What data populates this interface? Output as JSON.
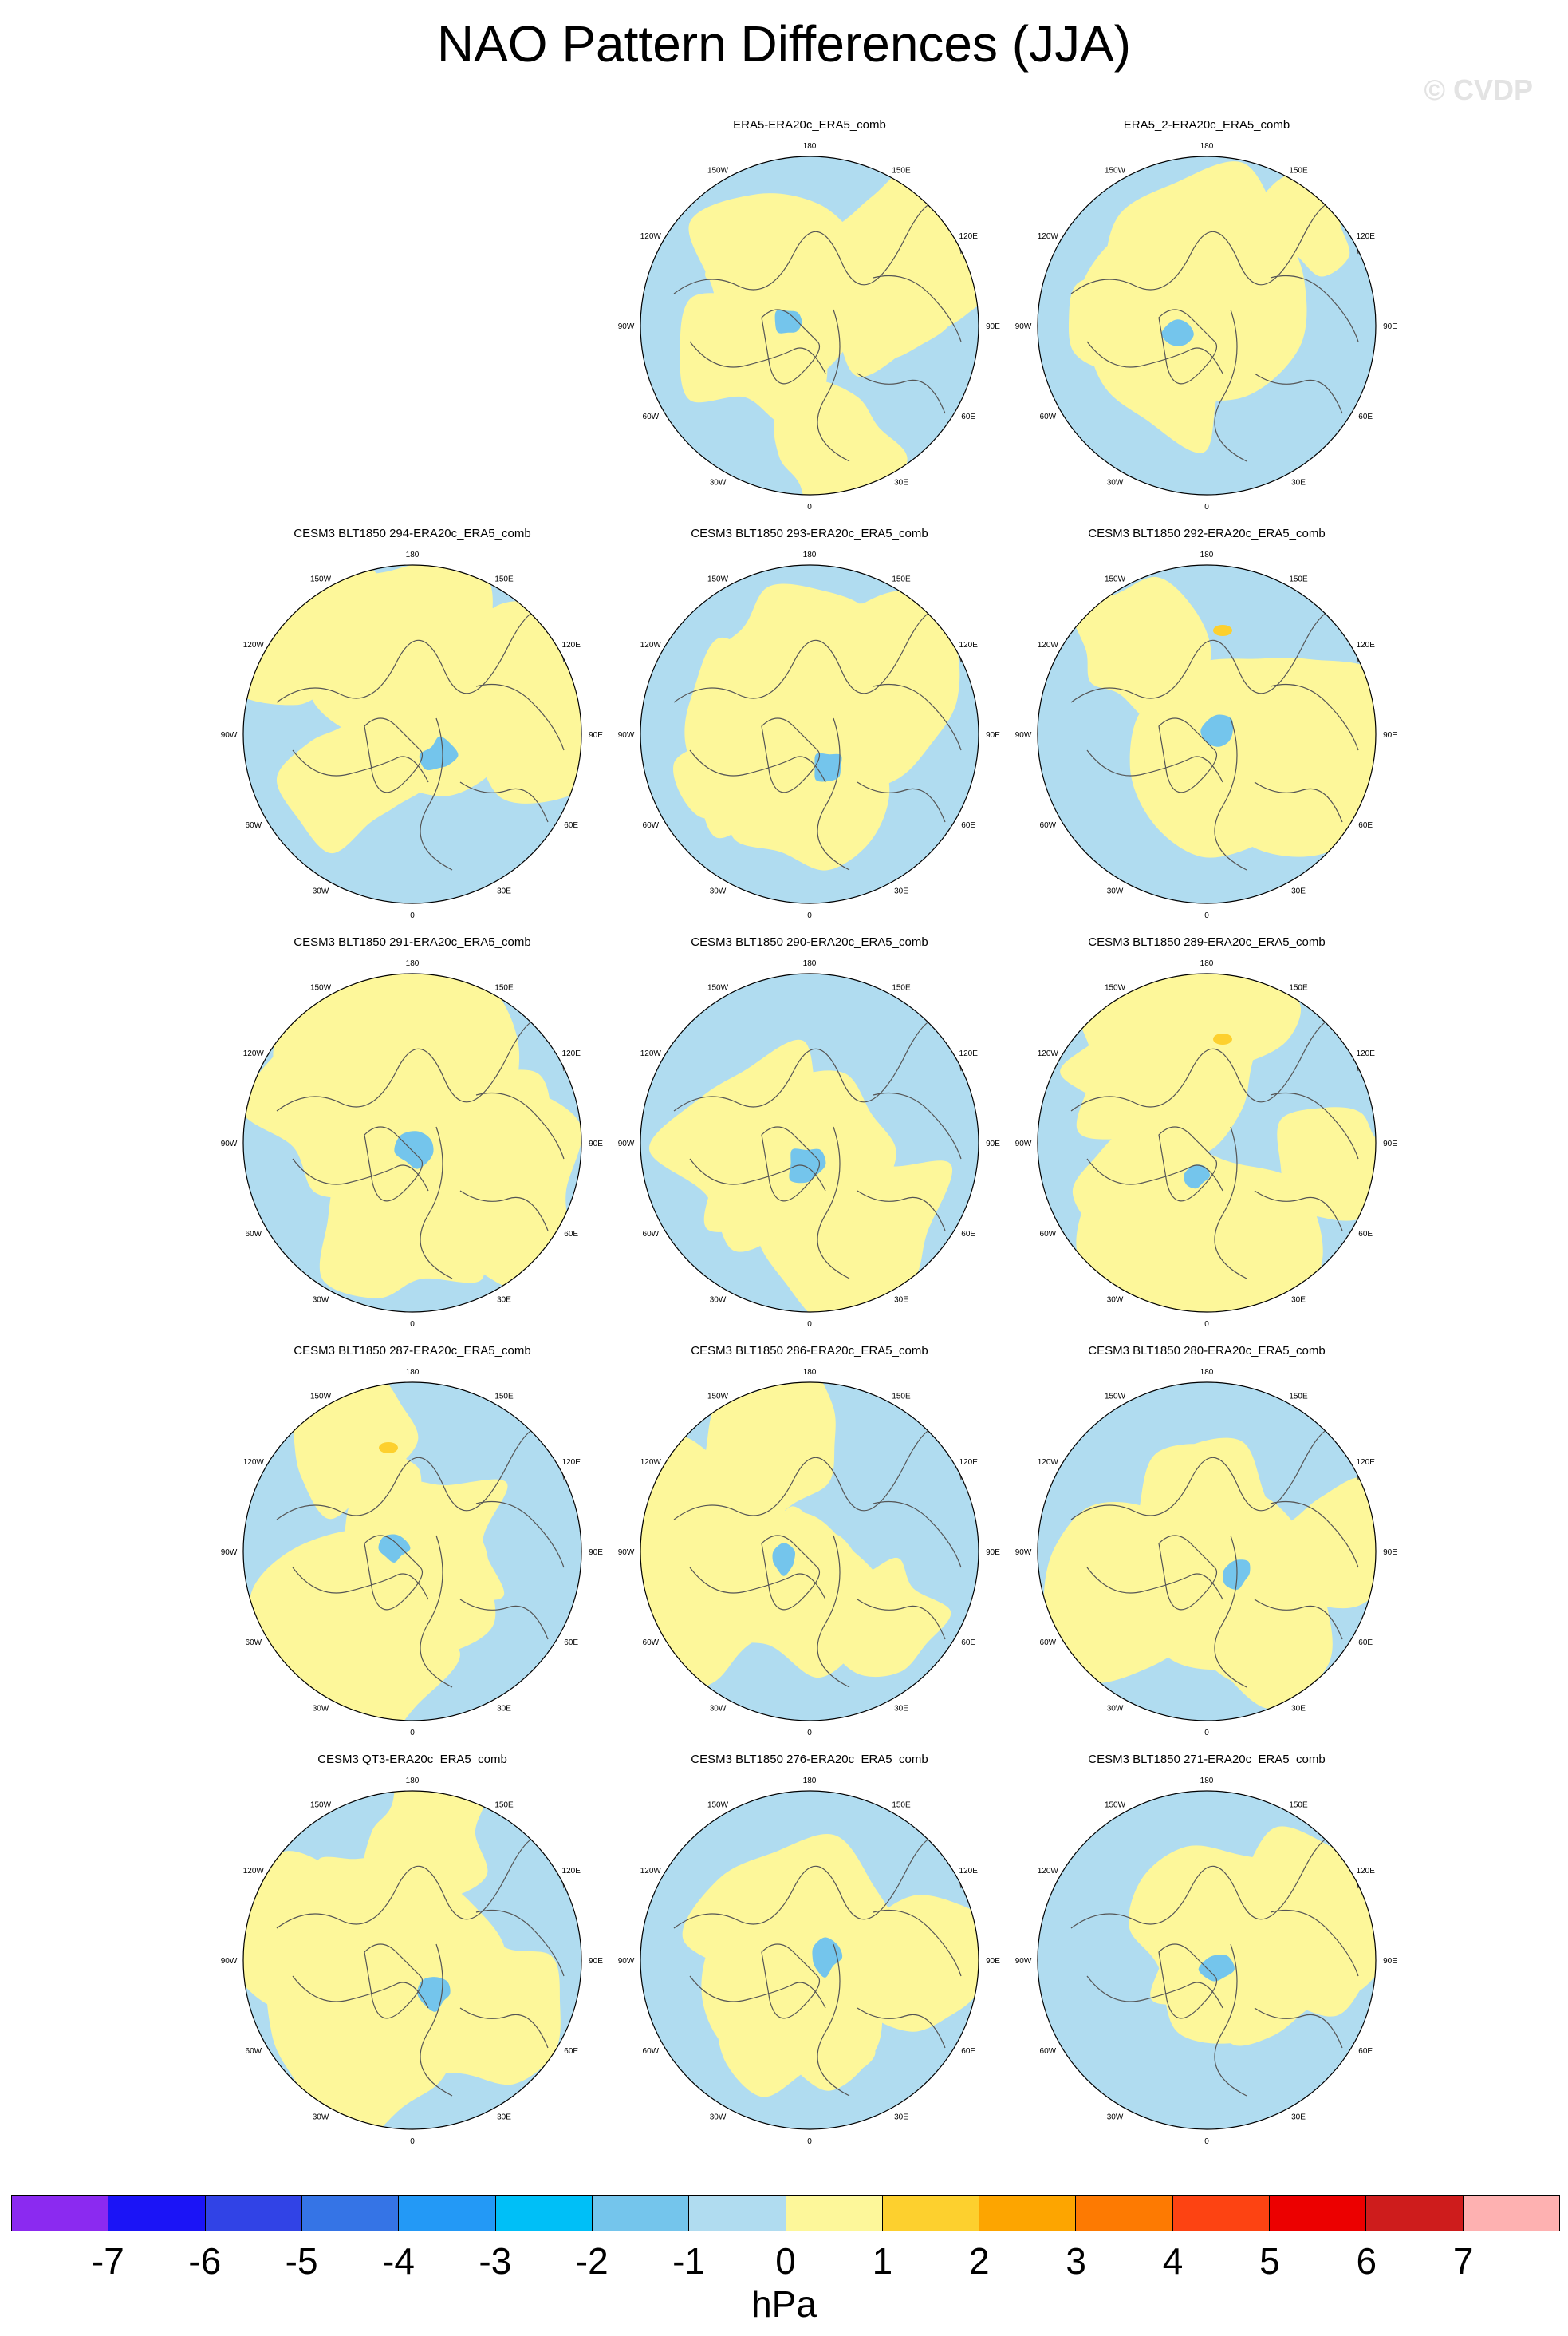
{
  "title": "NAO Pattern Differences (JJA)",
  "watermark": "© CVDP",
  "units": "hPa",
  "colors": {
    "ocean_blue": "#b0dcf0",
    "yellow": "#fdf79a",
    "mid_blue": "#74c5ec",
    "orange": "#fdd02e",
    "coast": "#555555"
  },
  "longitude_labels": [
    "180",
    "150E",
    "120E",
    "90E",
    "60E",
    "30E",
    "0",
    "30W",
    "60W",
    "90W",
    "120W",
    "150W"
  ],
  "colorbar": {
    "colors": [
      "#8b2af0",
      "#1b14f6",
      "#3143e6",
      "#3574e6",
      "#2399f6",
      "#00bff7",
      "#74c5ec",
      "#b0dcf0",
      "#fdf79a",
      "#fdd02e",
      "#fda500",
      "#fd7a02",
      "#fd4312",
      "#ec0000",
      "#ce1c1c",
      "#feb1b1"
    ],
    "tick_labels": [
      "-7",
      "-6",
      "-5",
      "-4",
      "-3",
      "-2",
      "-1",
      "0",
      "1",
      "2",
      "3",
      "4",
      "5",
      "6",
      "7"
    ]
  },
  "panels": [
    {
      "title": "ERA5-ERA20c_ERA5_comb",
      "pattern": 0
    },
    {
      "title": "ERA5_2-ERA20c_ERA5_comb",
      "pattern": 1
    },
    {
      "title": "CESM3 BLT1850 294-ERA20c_ERA5_comb",
      "pattern": 2
    },
    {
      "title": "CESM3 BLT1850 293-ERA20c_ERA5_comb",
      "pattern": 3
    },
    {
      "title": "CESM3 BLT1850 292-ERA20c_ERA5_comb",
      "pattern": 4
    },
    {
      "title": "CESM3 BLT1850 291-ERA20c_ERA5_comb",
      "pattern": 5
    },
    {
      "title": "CESM3 BLT1850 290-ERA20c_ERA5_comb",
      "pattern": 6
    },
    {
      "title": "CESM3 BLT1850 289-ERA20c_ERA5_comb",
      "pattern": 7
    },
    {
      "title": "CESM3 BLT1850 287-ERA20c_ERA5_comb",
      "pattern": 8
    },
    {
      "title": "CESM3 BLT1850 286-ERA20c_ERA5_comb",
      "pattern": 9
    },
    {
      "title": "CESM3 BLT1850 280-ERA20c_ERA5_comb",
      "pattern": 10
    },
    {
      "title": "CESM3 QT3-ERA20c_ERA5_comb",
      "pattern": 11
    },
    {
      "title": "CESM3 BLT1850 276-ERA20c_ERA5_comb",
      "pattern": 12
    },
    {
      "title": "CESM3 BLT1850 271-ERA20c_ERA5_comb",
      "pattern": 13
    }
  ]
}
